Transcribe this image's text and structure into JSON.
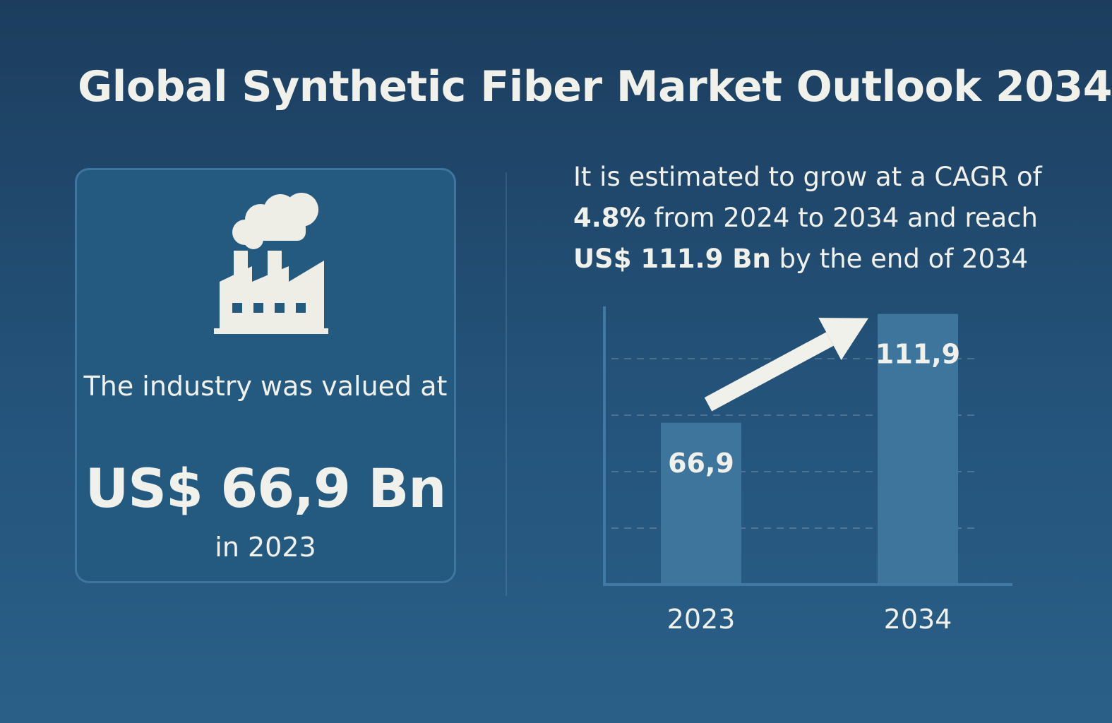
{
  "title": "Global Synthetic Fiber Market Outlook 2034",
  "card": {
    "line1": "The industry was valued at",
    "value": "US$ 66,9 Bn",
    "line3": "in 2023",
    "icon": "factory-icon"
  },
  "headline": {
    "part1": "It is estimated to grow at a CAGR of",
    "cagr": "4.8%",
    "part2": "from 2024 to 2034 and reach",
    "target": "US$ 111.9 Bn",
    "part3": "by the end of 2034"
  },
  "colors": {
    "background": "#1c3d5e",
    "bar": "#3e759d",
    "text": "#f1f1ec"
  },
  "chart_data": {
    "type": "bar",
    "categories": [
      "2023",
      "2034"
    ],
    "values": [
      66.9,
      111.9
    ],
    "data_labels": [
      "66,9",
      "111,9"
    ],
    "ylim": [
      0,
      120
    ],
    "grid": "dashed horizontal",
    "trend_arrow": true
  }
}
